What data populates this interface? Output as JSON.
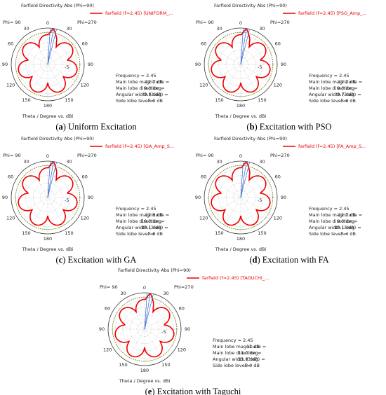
{
  "panels": [
    {
      "title": "Farfield Directivity Abs (Phi=90)",
      "legend": "farfield (f=2.45) [UNIFORM_...",
      "angle_labels": [
        "0",
        "30",
        "60",
        "90",
        "120",
        "150",
        "180",
        "30",
        "60",
        "90",
        "120",
        "150"
      ],
      "ring_label": "-5",
      "phi_left": "Phi= 90",
      "phi_right": "Phi=270",
      "axis_label": "Theta / Degree vs. dBi",
      "info": [
        [
          "Frequency = 2.45",
          ""
        ],
        [
          "Main lobe magnitude =",
          "12.7 dB"
        ],
        [
          "Main lobe direction =",
          "9.0 deg."
        ],
        [
          "Angular width (3 dB) =",
          "9.9 deg."
        ],
        [
          "Side lobe level =",
          "-6.0 dB"
        ]
      ],
      "caption": {
        "open": "(",
        "label": "a",
        "text": ") Uniform Excitation"
      }
    },
    {
      "title": "Farfield Directivity Abs (Phi=90)",
      "legend": "farfield (f=2.45) [PSO_Amp_...",
      "angle_labels": [
        "0",
        "30",
        "60",
        "90",
        "120",
        "150",
        "180",
        "30",
        "60",
        "90",
        "120",
        "150"
      ],
      "ring_label": "-5",
      "phi_left": "Phi= 90",
      "phi_right": "Phi=270",
      "axis_label": "Theta / Degree vs. dBi",
      "info": [
        [
          "Frequency = 2.45",
          ""
        ],
        [
          "Main lobe magnitude =",
          "12.2 dB"
        ],
        [
          "Main lobe direction =",
          "9.0 deg."
        ],
        [
          "Angular width (3 dB) =",
          "9.7 deg."
        ],
        [
          "Side lobe level =",
          "-5.9 dB"
        ]
      ],
      "caption": {
        "open": "(",
        "label": "b",
        "text": ") Excitation with PSO"
      }
    },
    {
      "title": "Farfield Directivity Abs (Phi=90)",
      "legend": "farfield (f=2.45) [GA_Amp_S...",
      "angle_labels": [
        "0",
        "30",
        "60",
        "90",
        "120",
        "150",
        "180",
        "30",
        "60",
        "90",
        "120",
        "150"
      ],
      "ring_label": "-5",
      "phi_left": "Phi= 90",
      "phi_right": "Phi=270",
      "axis_label": "Theta / Degree vs. dBi",
      "info": [
        [
          "Frequency = 2.45",
          ""
        ],
        [
          "Main lobe magnitude =",
          "12.6 dB"
        ],
        [
          "Main lobe direction =",
          "10.0 deg."
        ],
        [
          "Angular width (3 dB) =",
          "10.1 deg."
        ],
        [
          "Side lobe level =",
          "-5.8 dB"
        ]
      ],
      "caption": {
        "open": "(",
        "label": "c",
        "text": ") Excitation with GA"
      }
    },
    {
      "title": "Farfield Directivity Abs (Phi=90)",
      "legend": "farfield (f=2.45) [FA_Amp_S...",
      "angle_labels": [
        "0",
        "30",
        "60",
        "90",
        "120",
        "150",
        "180",
        "30",
        "60",
        "90",
        "120",
        "150"
      ],
      "ring_label": "-5",
      "phi_left": "Phi= 90",
      "phi_right": "Phi=270",
      "axis_label": "Theta / Degree vs. dBi",
      "info": [
        [
          "Frequency = 2.45",
          ""
        ],
        [
          "Main lobe magnitude =",
          "12.7 dB"
        ],
        [
          "Main lobe direction =",
          "9.0 deg."
        ],
        [
          "Angular width (3 dB) =",
          "10.1 deg."
        ],
        [
          "Side lobe level =",
          "-5.4 dB"
        ]
      ],
      "caption": {
        "open": "(",
        "label": "d",
        "text": ") Excitation with FA"
      }
    },
    {
      "title": "Farfield Directivity Abs (Phi=90)",
      "legend": "farfield (f=2.45) [TAGUCHI_...",
      "angle_labels": [
        "0",
        "30",
        "60",
        "90",
        "120",
        "150",
        "180",
        "30",
        "60",
        "90",
        "120",
        "150"
      ],
      "ring_label": "-5",
      "phi_left": "Phi= 90",
      "phi_right": "Phi=270",
      "axis_label": "Theta / Degree vs. dBi",
      "info": [
        [
          "Frequency = 2.45",
          ""
        ],
        [
          "Main lobe magnitude =",
          "11 dB"
        ],
        [
          "Main lobe direction =",
          "11.0 deg."
        ],
        [
          "Angular width (3 dB) =",
          "11.8 deg."
        ],
        [
          "Side lobe level =",
          "-8.0 dB"
        ]
      ],
      "caption": {
        "open": "(",
        "label": "e",
        "text": ") Excitation with Taguchi"
      }
    }
  ]
}
